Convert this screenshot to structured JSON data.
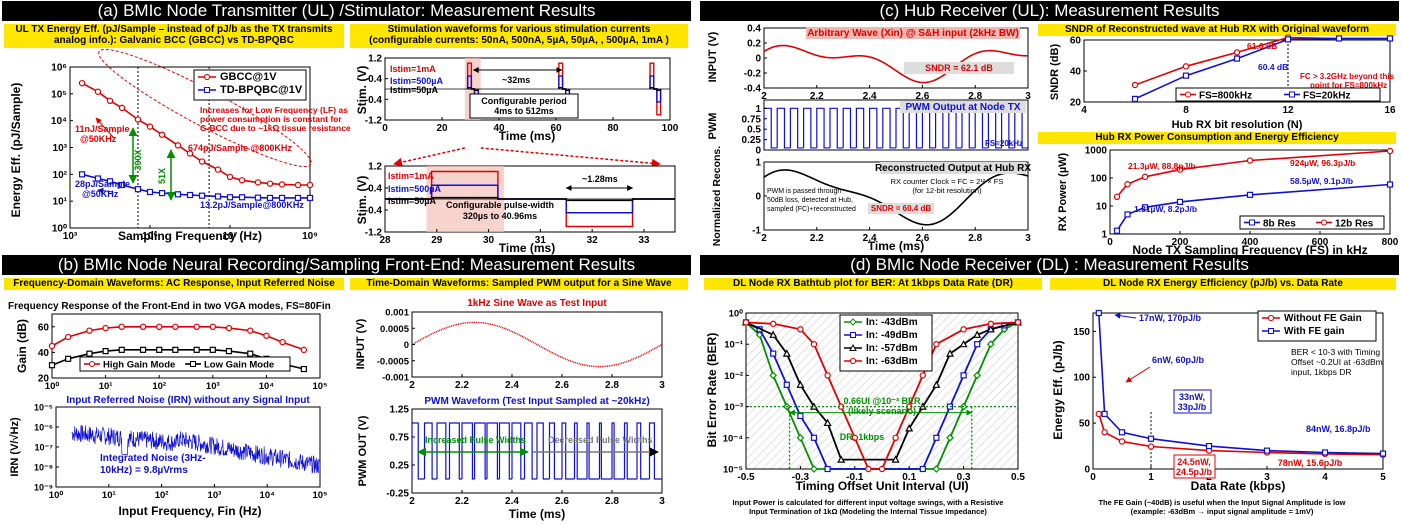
{
  "headers": {
    "a": "(a) BMIc Node Transmitter (UL) /Stimulator: Measurement Results",
    "b": "(b) BMIc Node Neural Recording/Sampling Front-End: Measurement Results",
    "c": "(c) Hub Receiver (UL): Measurement Results",
    "d": "(d) BMIc Node Receiver (DL) : Measurement Results"
  },
  "subtitles": {
    "a1_line1": "UL TX Energy Eff. (pJ/Sample – instead of pJ/b as the TX transmits",
    "a1_line2": "analog info.): Galvanic BCC (GBCC) vs TD-BPQBC",
    "a2_line1": "Stimulation waveforms for various stimulation currents",
    "a2_line2": "(configurable currents: 50nA, 500nA, 5µA, 50µA, , 500µA, 1mA )",
    "b1": "Frequency-Domain Waveforms: AC Response, Input Referred Noise",
    "b2": "Time-Domain Waveforms: Sampled PWM output for a Sine Wave",
    "c1": "SNDR of Reconstructed wave at Hub RX with Original waveform",
    "c2": "Hub RX Power Consumption and Energy Efficiency",
    "d1": "DL Node RX Bathtub plot for BER: At 1kbps Data Rate (DR)",
    "d2": "DL Node RX Energy Efficiency (pJ/b) vs. Data Rate"
  },
  "chart_data": [
    {
      "id": "ul_tx_energy",
      "type": "line",
      "xlabel": "Sampling Frequency (Hz)",
      "ylabel": "Energy Eff. (pJ/Sample)",
      "xscale": "log",
      "yscale": "log",
      "xlim": [
        1000,
        1000000000
      ],
      "ylim": [
        1,
        1000000
      ],
      "xticks": [
        "10³",
        "10⁵",
        "10⁷",
        "10⁹"
      ],
      "yticks": [
        "10⁶",
        "10⁵",
        "10⁴",
        "10³",
        "10²",
        "10¹",
        "10⁰"
      ],
      "series": [
        {
          "name": "GBCC@1V",
          "color": "#e00000",
          "x": [
            2000,
            5000,
            10000,
            20000,
            50000,
            100000,
            200000,
            500000,
            1000000,
            2000000,
            5000000,
            10000000,
            20000000,
            50000000,
            100000000,
            200000000,
            500000000,
            1000000000
          ],
          "y": [
            250000,
            120000,
            55000,
            30000,
            11000,
            6000,
            3000,
            1200,
            600,
            300,
            150,
            80,
            60,
            50,
            45,
            42,
            40,
            40
          ]
        },
        {
          "name": "TD-BPQBC@1V",
          "color": "#1010d0",
          "x": [
            2000,
            5000,
            10000,
            20000,
            50000,
            100000,
            200000,
            500000,
            1000000,
            2000000,
            5000000,
            10000000,
            20000000,
            50000000,
            100000000,
            200000000,
            500000000,
            1000000000
          ],
          "y": [
            100,
            70,
            55,
            40,
            28,
            22,
            20,
            18,
            17,
            16,
            15,
            14,
            14,
            13.5,
            13.2,
            13.2,
            13.2,
            13.2
          ]
        }
      ],
      "annotations": {
        "note_line1": "Increases for Low Frequency (LF) as",
        "note_line2": "power consumption is constant for",
        "note_line3": "G-BCC due to ~1kΩ tissue resistance",
        "g_lf_line1": "11nJ/Sample",
        "g_lf_line2": "@50KHz",
        "g_hf": "674pJ/Sample @800KHz",
        "t_lf_line1": "28pJ/Sample",
        "t_lf_line2": "@50KHz",
        "t_hf": "13.2pJ/Sample@800KHz",
        "ratio1": "390X",
        "ratio2": "51X"
      }
    },
    {
      "id": "stim_waveform_wide",
      "type": "line",
      "xlabel": "Time (ms)",
      "ylabel": "Stim. (V)",
      "xlim": [
        0,
        100
      ],
      "ylim": [
        -1.2,
        1.2
      ],
      "xticks": [
        "0",
        "20",
        "40",
        "60",
        "80",
        "100"
      ],
      "yticks": [
        "1.2",
        "0.4",
        "-0.4",
        "-1.2"
      ],
      "legend": [
        "Istim=1mA",
        "Istim=500µA",
        "Istim=50µA"
      ],
      "annotations": {
        "period_width": "~32ms",
        "period_line1": "Configurable period",
        "period_line2": "4ms to 512ms"
      }
    },
    {
      "id": "stim_waveform_zoom",
      "type": "line",
      "xlabel": "Time (ms)",
      "ylabel": "Stim. (V)",
      "xlim": [
        28,
        33.6
      ],
      "ylim": [
        -1.2,
        1.2
      ],
      "xticks": [
        "28",
        "29",
        "30",
        "31",
        "32",
        "33"
      ],
      "yticks": [
        "1.2",
        "0.4",
        "-0.4",
        "-1.2"
      ],
      "legend": [
        "Istim=1mA",
        "Istim=500µA",
        "Istim=50µA"
      ],
      "annotations": {
        "pulse_width": "~1.28ms",
        "pw_line1": "Configurable pulse-width",
        "pw_line2": "320µs to 40.96ms"
      }
    },
    {
      "id": "frontend_gain",
      "type": "line",
      "title": "Frequency Response of the Front-End in two VGA modes, FS=80Fin",
      "ylabel": "Gain (dB)",
      "xscale": "log",
      "xlim": [
        1,
        100000
      ],
      "ylim": [
        20,
        70
      ],
      "xticks": [
        "10⁰",
        "10¹",
        "10²",
        "10³",
        "10⁴",
        "10⁵"
      ],
      "yticks": [
        "60",
        "40",
        "20"
      ],
      "series": [
        {
          "name": "High Gain Mode",
          "color": "#e00000",
          "x": [
            1,
            2,
            5,
            10,
            20,
            50,
            100,
            200,
            500,
            1000,
            2000,
            5000,
            10000,
            20000,
            50000
          ],
          "y": [
            45,
            52,
            57,
            59,
            60,
            60,
            60,
            60,
            60,
            60,
            59,
            57,
            53,
            48,
            42
          ]
        },
        {
          "name": "Low Gain Mode",
          "color": "#000000",
          "x": [
            1,
            2,
            5,
            10,
            20,
            50,
            100,
            200,
            500,
            1000,
            2000,
            5000,
            10000,
            20000,
            50000
          ],
          "y": [
            30,
            35,
            39,
            41,
            42,
            42,
            42,
            42,
            42,
            42,
            41,
            39,
            35,
            31,
            27
          ]
        }
      ]
    },
    {
      "id": "irn",
      "type": "line",
      "title": "Input Referred Noise (IRN) without any Signal Input",
      "xlabel": "Input Frequency, Fin (Hz)",
      "ylabel": "IRN (V/√Hz)",
      "xscale": "log",
      "yscale": "log",
      "xlim": [
        1,
        100000
      ],
      "ylim": [
        1e-09,
        1e-05
      ],
      "xticks": [
        "10⁰",
        "10¹",
        "10²",
        "10³",
        "10⁴",
        "10⁵"
      ],
      "yticks": [
        "10⁻⁵",
        "10⁻⁶",
        "10⁻⁷",
        "10⁻⁸",
        "10⁻⁹"
      ],
      "annotations": {
        "line1": "Integrated Noise (3Hz-",
        "line2": "10kHz) = 9.8µVrms"
      }
    },
    {
      "id": "sine_input",
      "type": "line",
      "title": "1kHz Sine Wave as Test Input",
      "ylabel": "INPUT (V)",
      "xlim": [
        2,
        3
      ],
      "ylim": [
        -0.001,
        0.001
      ],
      "xticks": [
        "2",
        "2.2",
        "2.4",
        "2.6",
        "2.8",
        "3"
      ],
      "yticks": [
        "0.001",
        "0.0005",
        "0",
        "-0.0005",
        "-0.001"
      ]
    },
    {
      "id": "pwm_output",
      "type": "line",
      "title": "PWM Waveform (Test Input Sampled at ~20kHz)",
      "xlabel": "Time (ms)",
      "ylabel": "PWM OUT (V)",
      "xlim": [
        2,
        3
      ],
      "ylim": [
        -0.25,
        1.25
      ],
      "xticks": [
        "2",
        "2.2",
        "2.4",
        "2.6",
        "2.8",
        "3"
      ],
      "yticks": [
        "1.25",
        "0.75",
        "0.25",
        "-0.25"
      ],
      "annotations": {
        "inc": "Increased Pulse Widths",
        "dec": "Decreased Pulse Widths"
      }
    },
    {
      "id": "hub_input",
      "type": "line",
      "ylabel": "INPUT (V)",
      "xlim": [
        2,
        3
      ],
      "ylim": [
        -0.4,
        0.4
      ],
      "xticks": [
        "2",
        "2.2",
        "2.4",
        "2.6",
        "2.8",
        "3"
      ],
      "yticks": [
        "0.4",
        "0.2",
        "0",
        "-0.2",
        "-0.4"
      ],
      "annotations": {
        "title": "Arbitrary Wave (Xin) @ S&H input (2kHz BW)",
        "sndr": "SNDR = 62.1 dB"
      }
    },
    {
      "id": "hub_pwm",
      "type": "line",
      "ylabel": "PWM",
      "xlim": [
        2,
        3
      ],
      "ylim": [
        0,
        1.2
      ],
      "yticks": [
        "1",
        "0.75",
        "0.5",
        "0.25",
        "0"
      ],
      "annotations": {
        "title": "PWM Output at Node TX",
        "fs": "FS=20kHz"
      }
    },
    {
      "id": "hub_recon",
      "type": "line",
      "xlabel": "Time (ms)",
      "ylabel": "Normalized Recons.",
      "xlim": [
        2,
        3
      ],
      "ylim": [
        -1,
        1
      ],
      "xticks": [
        "2",
        "2.2",
        "2.4",
        "2.6",
        "2.8",
        "3"
      ],
      "yticks": [
        "1",
        "0",
        "-1"
      ],
      "annotations": {
        "title": "Reconstructed Output at Hub RX",
        "clk1": "RX counter Clock = FC = 2¹² × FS",
        "clk2": "(for 12-bit resolution)",
        "note1": "PWM is passed through",
        "note2": "50dB loss, detected at Hub,",
        "note3": "sampled (FC)+reconstructed",
        "sndr": "SNDR = 60.4 dB"
      }
    },
    {
      "id": "sndr_vs_bits",
      "type": "line",
      "xlabel": "Hub RX bit resolution (N)",
      "ylabel": "SNDR (dB)",
      "xlim": [
        4,
        16
      ],
      "ylim": [
        20,
        60
      ],
      "xticks": [
        "4",
        "8",
        "12",
        "16"
      ],
      "yticks": [
        "60",
        "40",
        "20"
      ],
      "series": [
        {
          "name": "FS=800kHz",
          "color": "#e00000",
          "x": [
            6,
            8,
            10,
            12,
            14,
            16
          ],
          "y": [
            31,
            43,
            52,
            61.6,
            61,
            61
          ]
        },
        {
          "name": "FS=20kHz",
          "color": "#1010d0",
          "x": [
            6,
            8,
            10,
            12,
            14,
            16
          ],
          "y": [
            22,
            37,
            48,
            60.4,
            61,
            61
          ]
        }
      ],
      "annotations": {
        "a1": "61.6 dB",
        "a2": "60.4 dB",
        "n1": "FC > 3.2GHz beyond this",
        "n2": "point for FS=800kHz"
      }
    },
    {
      "id": "hub_power",
      "type": "line",
      "xlabel": "Node TX Sampling Frequency (FS) in kHz",
      "ylabel": "RX Power (µW)",
      "yscale": "log",
      "xlim": [
        0,
        800
      ],
      "ylim": [
        1,
        1000
      ],
      "xticks": [
        "0",
        "200",
        "400",
        "600",
        "800"
      ],
      "yticks": [
        "1000",
        "100",
        "10",
        "1"
      ],
      "series": [
        {
          "name": "8b Res",
          "color": "#1010d0",
          "x": [
            20,
            50,
            100,
            200,
            400,
            800
          ],
          "y": [
            1.31,
            5,
            9,
            14,
            25,
            58.5
          ]
        },
        {
          "name": "12b Res",
          "color": "#e00000",
          "x": [
            20,
            50,
            100,
            200,
            400,
            800
          ],
          "y": [
            21.3,
            60,
            110,
            200,
            420,
            924
          ]
        }
      ],
      "annotations": {
        "r1": "21.3µW, 88.8pJ/b",
        "r2": "924µW, 96.3pJ/b",
        "b1": "1.31µW, 8.2pJ/b",
        "b2": "58.5µW, 9.1pJ/b"
      }
    },
    {
      "id": "ber_bathtub",
      "type": "line",
      "xlabel": "Timing Offset Unit Interval (UI)",
      "ylabel": "Bit Error Rate (BER)",
      "yscale": "log",
      "xlim": [
        -0.5,
        0.5
      ],
      "ylim": [
        1e-05,
        1
      ],
      "xticks": [
        "-0.5",
        "-0.3",
        "-0.1",
        "0.1",
        "0.3",
        "0.5"
      ],
      "yticks": [
        "10⁰",
        "10⁻¹",
        "10⁻²",
        "10⁻³",
        "10⁻⁴",
        "10⁻⁵"
      ],
      "series": [
        {
          "name": "In: -43dBm",
          "color": "#009000",
          "x": [
            -0.5,
            -0.45,
            -0.4,
            -0.35,
            -0.3,
            -0.25,
            0.2,
            0.25,
            0.3,
            0.35,
            0.4,
            0.45,
            0.5
          ],
          "y": [
            0.5,
            0.2,
            0.01,
            0.001,
            0.0001,
            1e-05,
            1e-05,
            0.0001,
            0.001,
            0.01,
            0.1,
            0.3,
            0.5
          ]
        },
        {
          "name": "In: -49dBm",
          "color": "#1010d0",
          "x": [
            -0.5,
            -0.45,
            -0.4,
            -0.35,
            -0.3,
            -0.25,
            -0.2,
            0.15,
            0.2,
            0.25,
            0.3,
            0.35,
            0.4,
            0.45,
            0.5
          ],
          "y": [
            0.5,
            0.3,
            0.05,
            0.005,
            0.0005,
            0.0001,
            1e-05,
            1e-05,
            0.0001,
            0.001,
            0.01,
            0.1,
            0.3,
            0.4,
            0.5
          ]
        },
        {
          "name": "In: -57dBm",
          "color": "#000000",
          "x": [
            -0.5,
            -0.4,
            -0.35,
            -0.3,
            -0.25,
            -0.2,
            -0.15,
            0.05,
            0.1,
            0.15,
            0.2,
            0.25,
            0.3,
            0.35,
            0.4,
            0.5
          ],
          "y": [
            0.5,
            0.2,
            0.05,
            0.005,
            0.001,
            0.0003,
            2e-05,
            2e-05,
            0.0002,
            0.001,
            0.005,
            0.05,
            0.1,
            0.2,
            0.3,
            0.5
          ]
        },
        {
          "name": "In: -63dBm",
          "color": "#e00000",
          "x": [
            -0.5,
            -0.4,
            -0.3,
            -0.25,
            -0.2,
            -0.15,
            -0.1,
            -0.05,
            0,
            0.05,
            0.1,
            0.15,
            0.2,
            0.3,
            0.4,
            0.5
          ],
          "y": [
            0.5,
            0.45,
            0.3,
            0.1,
            0.01,
            0.001,
            0.0001,
            1e-05,
            1e-05,
            0.0001,
            0.001,
            0.01,
            0.1,
            0.3,
            0.45,
            0.5
          ]
        }
      ],
      "annotations": {
        "a1": "0.66UI @10⁻³ BER",
        "a2": "(likely scenario)",
        "a3": "DR: 1kbps",
        "caption1": "Input Power is calculated for different input voltage swings, with a Resistive",
        "caption2": "Input Termination of 1kΩ (Modeling the Internal Tissue Impedance)"
      }
    },
    {
      "id": "dl_energy",
      "type": "line",
      "xlabel": "Data Rate (kbps)",
      "ylabel": "Energy Eff. (pJ/b)",
      "xlim": [
        0,
        5
      ],
      "ylim": [
        0,
        170
      ],
      "xticks": [
        "0",
        "1",
        "2",
        "3",
        "4",
        "5"
      ],
      "yticks": [
        "150",
        "100",
        "50",
        "0"
      ],
      "series": [
        {
          "name": "Without FE Gain",
          "color": "#e00000",
          "x": [
            0.1,
            0.2,
            0.5,
            1,
            2,
            3,
            4,
            5
          ],
          "y": [
            60,
            40,
            30,
            24.5,
            20,
            18,
            16.5,
            15.6
          ]
        },
        {
          "name": "With FE gain",
          "color": "#1010d0",
          "x": [
            0.1,
            0.2,
            0.5,
            1,
            2,
            3,
            4,
            5
          ],
          "y": [
            170,
            60,
            40,
            33,
            25,
            20,
            18,
            16.8
          ]
        }
      ],
      "annotations": {
        "b1": "17nW, 170pJ/b",
        "b2": "6nW, 60pJ/b",
        "b3a": "33nW,",
        "b3b": "33pJ/b",
        "b4": "84nW, 16.8pJ/b",
        "r1a": "24.5nW,",
        "r1b": "24.5pJ/b",
        "r2": "78nW, 15.6pJ/b",
        "n1": "BER < 10-3 with Timing",
        "n2": "Offset ~0.2UI at -63dBm",
        "n3": "input, 1kbps DR",
        "caption1": "The FE Gain (~40dB) is useful when the Input Signal Amplitude is low",
        "caption2": "(example: -63dBm → input signal amplitude = 1mV)"
      }
    }
  ]
}
